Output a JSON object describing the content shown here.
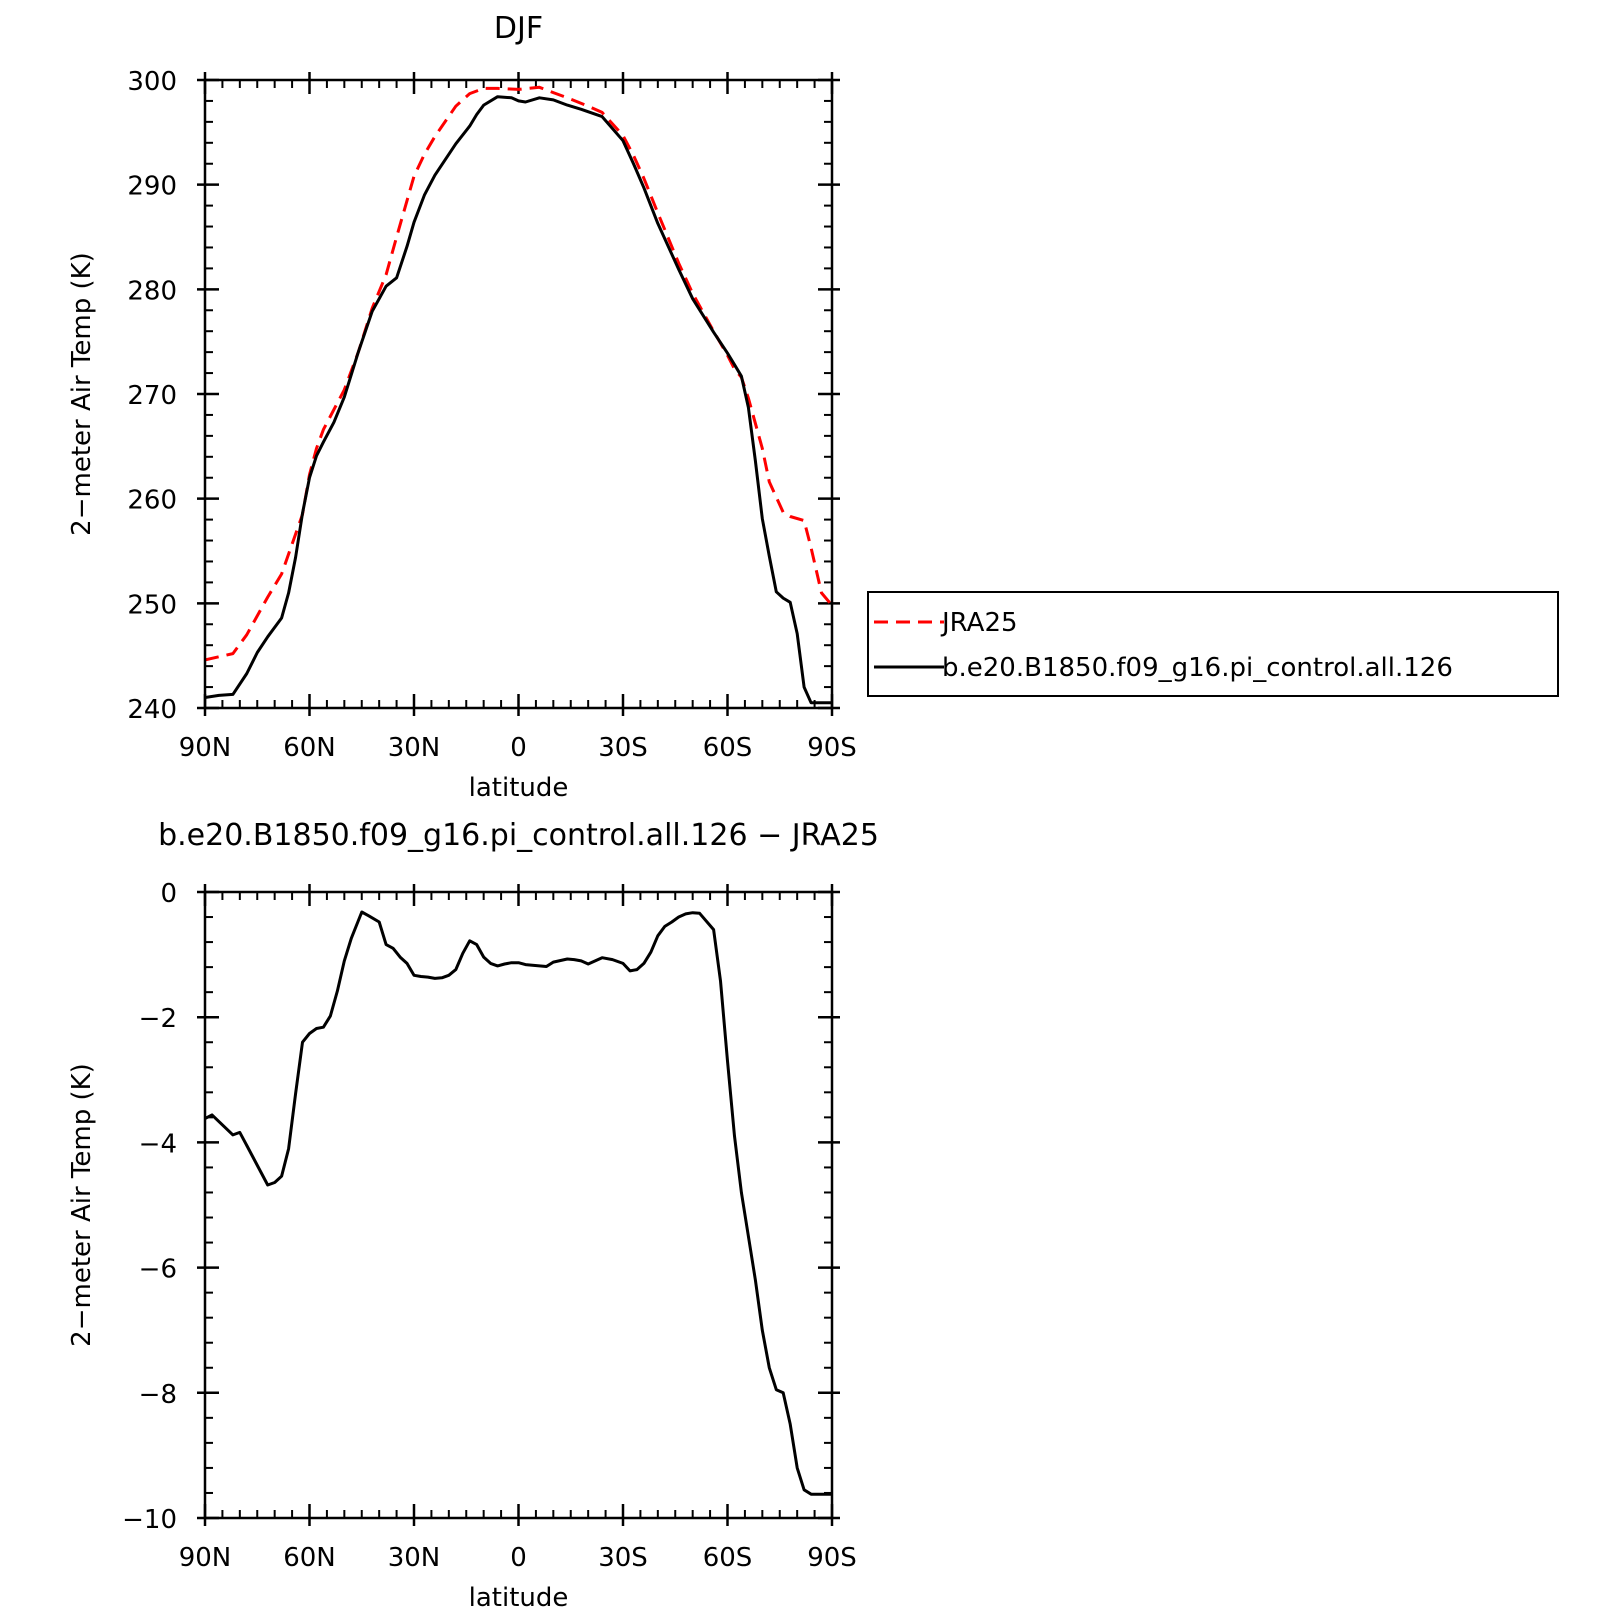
{
  "chart_data": [
    {
      "type": "line",
      "title": "DJF",
      "xlabel": "latitude",
      "ylabel": "2−meter Air Temp (K)",
      "xlim": [
        90,
        -90
      ],
      "ylim": [
        240,
        300
      ],
      "x_ticks": [
        90,
        60,
        30,
        0,
        -30,
        -60,
        -90
      ],
      "x_tick_labels": [
        "90N",
        "60N",
        "30N",
        "0",
        "30S",
        "60S",
        "90S"
      ],
      "y_ticks": [
        240,
        250,
        260,
        270,
        280,
        290,
        300
      ],
      "y_tick_labels": [
        "240",
        "250",
        "260",
        "270",
        "280",
        "290",
        "300"
      ],
      "grid": false,
      "legend": {
        "placement": "right",
        "entries": [
          "JRA25",
          "b.e20.B1850.f09_g16.pi_control.all.126"
        ]
      },
      "series": [
        {
          "name": "JRA25",
          "color": "#ff0000",
          "dash": "dashed",
          "x": [
            90,
            82,
            78,
            72,
            68,
            62,
            60,
            58,
            56,
            50,
            46,
            42,
            38,
            35,
            33,
            30,
            27,
            24,
            18,
            14,
            10,
            6,
            0,
            -6,
            -10,
            -14,
            -20,
            -24,
            -30,
            -33,
            -36,
            -40,
            -46,
            -50,
            -56,
            -60,
            -62,
            -64,
            -66,
            -70,
            -72,
            -76,
            -78,
            -82,
            -84,
            -87,
            -90
          ],
          "values": [
            244.6,
            245.2,
            247.0,
            250.6,
            252.8,
            258.5,
            262.3,
            264.8,
            266.6,
            270.4,
            274.0,
            278.2,
            281.4,
            285.0,
            287.3,
            290.8,
            292.9,
            294.6,
            297.5,
            298.7,
            299.2,
            299.2,
            299.1,
            299.3,
            298.8,
            298.3,
            297.5,
            296.9,
            294.7,
            292.8,
            290.6,
            287.3,
            282.5,
            279.6,
            276.0,
            273.7,
            272.4,
            271.6,
            269.6,
            264.8,
            261.6,
            258.7,
            258.3,
            257.9,
            255.3,
            251.0,
            249.8
          ]
        },
        {
          "name": "b.e20.B1850.f09_g16.pi_control.all.126",
          "color": "#000000",
          "dash": "solid",
          "x": [
            90,
            86,
            82,
            78,
            75,
            72,
            68,
            66,
            64,
            62,
            60,
            58,
            56,
            53,
            50,
            46,
            42,
            38,
            35,
            32,
            30,
            27,
            24,
            18,
            14,
            12,
            10,
            6,
            2,
            0,
            -2,
            -6,
            -10,
            -14,
            -18,
            -24,
            -30,
            -33,
            -36,
            -40,
            -46,
            -50,
            -56,
            -60,
            -62,
            -64,
            -66,
            -68,
            -70,
            -72,
            -74,
            -76,
            -78,
            -80,
            -82,
            -84,
            -86,
            -88,
            -90
          ],
          "values": [
            241.0,
            241.2,
            241.3,
            243.3,
            245.3,
            246.8,
            248.6,
            251.0,
            254.4,
            258.6,
            262.0,
            264.1,
            265.4,
            267.3,
            269.7,
            274.0,
            277.9,
            280.3,
            281.1,
            284.1,
            286.4,
            289.0,
            290.9,
            293.9,
            295.6,
            296.7,
            297.6,
            298.4,
            298.3,
            298.0,
            297.9,
            298.3,
            298.1,
            297.6,
            297.2,
            296.5,
            294.2,
            292.0,
            289.7,
            286.3,
            281.9,
            279.1,
            275.9,
            273.9,
            272.8,
            271.7,
            268.7,
            263.6,
            258.1,
            254.5,
            251.1,
            250.5,
            250.1,
            247.1,
            242.0,
            240.5,
            240.5,
            240.5,
            240.5
          ]
        }
      ]
    },
    {
      "type": "line",
      "title": "b.e20.B1850.f09_g16.pi_control.all.126 − JRA25",
      "xlabel": "latitude",
      "ylabel": "2−meter Air Temp (K)",
      "xlim": [
        90,
        -90
      ],
      "ylim": [
        -10,
        0
      ],
      "x_ticks": [
        90,
        60,
        30,
        0,
        -30,
        -60,
        -90
      ],
      "x_tick_labels": [
        "90N",
        "60N",
        "30N",
        "0",
        "30S",
        "60S",
        "90S"
      ],
      "y_ticks": [
        -10,
        -8,
        -6,
        -4,
        -2,
        0
      ],
      "y_tick_labels": [
        "−10",
        "−8",
        "−6",
        "−4",
        "−2",
        "0"
      ],
      "grid": false,
      "series": [
        {
          "color": "#000000",
          "dash": "solid",
          "x": [
            90,
            88,
            82,
            80,
            78,
            72,
            70,
            68,
            66,
            64,
            62,
            60,
            58,
            56,
            54,
            52,
            50,
            48,
            45,
            43,
            40,
            38,
            36,
            34,
            32,
            30,
            28,
            26,
            24,
            22,
            20,
            18,
            16,
            14,
            12,
            10,
            8,
            6,
            4,
            2,
            0,
            -2,
            -4,
            -8,
            -10,
            -14,
            -16,
            -18,
            -20,
            -24,
            -27,
            -30,
            -32,
            -34,
            -36,
            -38,
            -40,
            -42,
            -44,
            -46,
            -48,
            -50,
            -52,
            -56,
            -58,
            -60,
            -62,
            -64,
            -66,
            -68,
            -70,
            -72,
            -74,
            -76,
            -78,
            -80,
            -82,
            -84,
            -86,
            -88,
            -90
          ],
          "values": [
            -3.62,
            -3.56,
            -3.88,
            -3.84,
            -4.05,
            -4.68,
            -4.64,
            -4.54,
            -4.1,
            -3.22,
            -2.4,
            -2.26,
            -2.18,
            -2.16,
            -1.98,
            -1.58,
            -1.1,
            -0.74,
            -0.32,
            -0.38,
            -0.48,
            -0.84,
            -0.9,
            -1.04,
            -1.14,
            -1.33,
            -1.35,
            -1.36,
            -1.38,
            -1.37,
            -1.33,
            -1.24,
            -0.98,
            -0.78,
            -0.84,
            -1.04,
            -1.14,
            -1.18,
            -1.15,
            -1.13,
            -1.13,
            -1.16,
            -1.17,
            -1.19,
            -1.12,
            -1.07,
            -1.08,
            -1.1,
            -1.15,
            -1.05,
            -1.08,
            -1.14,
            -1.26,
            -1.24,
            -1.14,
            -0.96,
            -0.7,
            -0.55,
            -0.48,
            -0.4,
            -0.35,
            -0.33,
            -0.34,
            -0.6,
            -1.42,
            -2.7,
            -3.9,
            -4.8,
            -5.5,
            -6.2,
            -7.0,
            -7.6,
            -7.95,
            -8.0,
            -8.5,
            -9.2,
            -9.55,
            -9.62,
            -9.62,
            -9.62,
            -9.62
          ]
        }
      ]
    }
  ]
}
